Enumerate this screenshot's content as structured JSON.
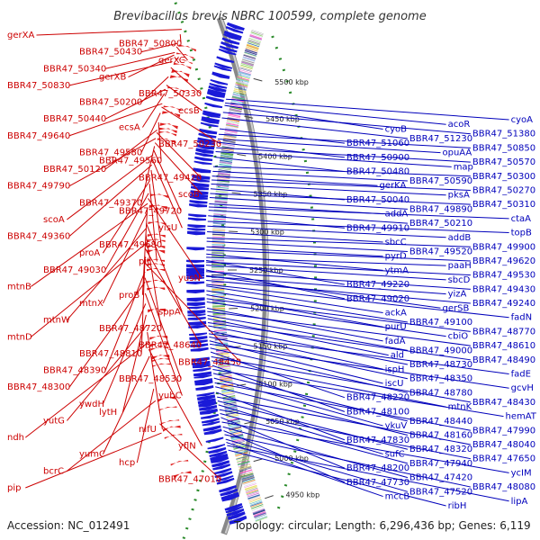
{
  "title": "Brevibacillus brevis NBRC 100599, complete genome",
  "accession": "Accession: NC_012491",
  "summary": "Topology: circular; Length: 6,296,436 bp; Genes: 6,119",
  "colors": {
    "backbone": "#888888",
    "reverse_strand": "#e02020",
    "forward_strand": "#1a1ad8",
    "left_labels": "#cc0000",
    "right_labels": "#0000bb",
    "rna_marks": "#2a8a2a"
  },
  "kbp_ticks": [
    {
      "label": "5500 kbp",
      "kbp": 5500
    },
    {
      "label": "5450 kbp",
      "kbp": 5450
    },
    {
      "label": "5400 kbp",
      "kbp": 5400
    },
    {
      "label": "5350 kbp",
      "kbp": 5350
    },
    {
      "label": "5300 kbp",
      "kbp": 5300
    },
    {
      "label": "5250 kbp",
      "kbp": 5250
    },
    {
      "label": "5200 kbp",
      "kbp": 5200
    },
    {
      "label": "5150 kbp",
      "kbp": 5150
    },
    {
      "label": "5100 kbp",
      "kbp": 5100
    },
    {
      "label": "5050 kbp",
      "kbp": 5050
    },
    {
      "label": "5000 kbp",
      "kbp": 5000
    },
    {
      "label": "4950 kbp",
      "kbp": 4950
    }
  ],
  "left_labels": [
    {
      "text": "gerXA",
      "kbp": 5533
    },
    {
      "text": "BBR47_50800",
      "kbp": 5527
    },
    {
      "text": "BBR47_50430",
      "kbp": 5516
    },
    {
      "text": "gerXC",
      "kbp": 5512
    },
    {
      "text": "BBR47_50340",
      "kbp": 5505
    },
    {
      "text": "gerXB",
      "kbp": 5502
    },
    {
      "text": "BBR47_50830",
      "kbp": 5494
    },
    {
      "text": "BBR47_50330",
      "kbp": 5487
    },
    {
      "text": "BBR47_50200",
      "kbp": 5476
    },
    {
      "text": "ecsB",
      "kbp": 5466
    },
    {
      "text": "BBR47_50440",
      "kbp": 5461
    },
    {
      "text": "ecsA",
      "kbp": 5456
    },
    {
      "text": "BBR47_49640",
      "kbp": 5444
    },
    {
      "text": "BBR47_50230",
      "kbp": 5440
    },
    {
      "text": "BBR47_49580",
      "kbp": 5433
    },
    {
      "text": "BBR47_49560",
      "kbp": 5422
    },
    {
      "text": "BBR47_50120",
      "kbp": 5413
    },
    {
      "text": "BBR47_49420",
      "kbp": 5410
    },
    {
      "text": "BBR47_49790",
      "kbp": 5403
    },
    {
      "text": "scoB",
      "kbp": 5398
    },
    {
      "text": "BBR47_49370",
      "kbp": 5394
    },
    {
      "text": "BBR47_49720",
      "kbp": 5389
    },
    {
      "text": "scoA",
      "kbp": 5384
    },
    {
      "text": "yisU",
      "kbp": 5378
    },
    {
      "text": "BBR47_49360",
      "kbp": 5372
    },
    {
      "text": "BBR47_49680",
      "kbp": 5366
    },
    {
      "text": "proA",
      "kbp": 5354
    },
    {
      "text": "pit",
      "kbp": 5350
    },
    {
      "text": "BBR47_49030",
      "kbp": 5339
    },
    {
      "text": "yusN",
      "kbp": 5333
    },
    {
      "text": "mtnB",
      "kbp": 5327
    },
    {
      "text": "proB",
      "kbp": 5322
    },
    {
      "text": "mtnX",
      "kbp": 5316
    },
    {
      "text": "sppA",
      "kbp": 5304
    },
    {
      "text": "mtnW",
      "kbp": 5298
    },
    {
      "text": "BBR47_48720",
      "kbp": 5292
    },
    {
      "text": "mtnD",
      "kbp": 5280
    },
    {
      "text": "BBR47_48640",
      "kbp": 5275
    },
    {
      "text": "BBR47_48810",
      "kbp": 5266
    },
    {
      "text": "BBR47_48450",
      "kbp": 5258
    },
    {
      "text": "BBR47_48390",
      "kbp": 5248
    },
    {
      "text": "BBR47_48530",
      "kbp": 5241
    },
    {
      "text": "BBR47_48300",
      "kbp": 5236
    },
    {
      "text": "yubC",
      "kbp": 5223
    },
    {
      "text": "ywdH",
      "kbp": 5211
    },
    {
      "text": "lytH",
      "kbp": 5198
    },
    {
      "text": "yutG",
      "kbp": 5186
    },
    {
      "text": "nifU",
      "kbp": 5178
    },
    {
      "text": "ndh",
      "kbp": 5166
    },
    {
      "text": "yflN",
      "kbp": 5158
    },
    {
      "text": "yumC",
      "kbp": 5150
    },
    {
      "text": "hcp",
      "kbp": 5112
    },
    {
      "text": "bcrC",
      "kbp": 5098
    },
    {
      "text": "BBR47_47010",
      "kbp": 5071
    },
    {
      "text": "pip",
      "kbp": 5060
    }
  ],
  "right_labels": [
    {
      "text": "cyoA",
      "kbp": 5466
    },
    {
      "text": "acoR",
      "kbp": 5461
    },
    {
      "text": "cyoB",
      "kbp": 5458
    },
    {
      "text": "BBR47_51380",
      "kbp": 5449
    },
    {
      "text": "BBR47_51230",
      "kbp": 5442
    },
    {
      "text": "BBR47_51060",
      "kbp": 5428
    },
    {
      "text": "BBR47_50850",
      "kbp": 5421
    },
    {
      "text": "opuAA",
      "kbp": 5415
    },
    {
      "text": "BBR47_50900",
      "kbp": 5411
    },
    {
      "text": "BBR47_50570",
      "kbp": 5404
    },
    {
      "text": "map",
      "kbp": 5399
    },
    {
      "text": "BBR47_50480",
      "kbp": 5392
    },
    {
      "text": "BBR47_50300",
      "kbp": 5380
    },
    {
      "text": "BBR47_50590",
      "kbp": 5374
    },
    {
      "text": "gerKA",
      "kbp": 5368
    },
    {
      "text": "BBR47_50270",
      "kbp": 5363
    },
    {
      "text": "pksA",
      "kbp": 5358
    },
    {
      "text": "BBR47_50040",
      "kbp": 5352
    },
    {
      "text": "BBR47_50310",
      "kbp": 5346
    },
    {
      "text": "BBR47_49890",
      "kbp": 5341
    },
    {
      "text": "addA",
      "kbp": 5333
    },
    {
      "text": "ctaA",
      "kbp": 5329
    },
    {
      "text": "BBR47_50210",
      "kbp": 5325
    },
    {
      "text": "BBR47_49910",
      "kbp": 5318
    },
    {
      "text": "topB",
      "kbp": 5311
    },
    {
      "text": "addB",
      "kbp": 5305
    },
    {
      "text": "sbcC",
      "kbp": 5298
    },
    {
      "text": "BBR47_49900",
      "kbp": 5290
    },
    {
      "text": "BBR47_49520",
      "kbp": 5286
    },
    {
      "text": "pyrD",
      "kbp": 5279
    },
    {
      "text": "BBR47_49620",
      "kbp": 5275
    },
    {
      "text": "paaH",
      "kbp": 5266
    },
    {
      "text": "ytmA",
      "kbp": 5270
    },
    {
      "text": "BBR47_49530",
      "kbp": 5260
    },
    {
      "text": "sbcD",
      "kbp": 5256
    },
    {
      "text": "BBR47_49220",
      "kbp": 5262
    },
    {
      "text": "BBR47_49430",
      "kbp": 5248
    },
    {
      "text": "yizA",
      "kbp": 5242
    },
    {
      "text": "BBR47_49020",
      "kbp": 5250
    },
    {
      "text": "BBR47_49240",
      "kbp": 5237
    },
    {
      "text": "gerSB",
      "kbp": 5243
    },
    {
      "text": "ackA",
      "kbp": 5230
    },
    {
      "text": "fadN",
      "kbp": 5232
    },
    {
      "text": "BBR47_49100",
      "kbp": 5224
    },
    {
      "text": "purU",
      "kbp": 5219
    },
    {
      "text": "BBR47_48770",
      "kbp": 5214
    },
    {
      "text": "cbiO",
      "kbp": 5210
    },
    {
      "text": "fadA",
      "kbp": 5202
    },
    {
      "text": "BBR47_48610",
      "kbp": 5198
    },
    {
      "text": "BBR47_49000",
      "kbp": 5193
    },
    {
      "text": "ald",
      "kbp": 5189
    },
    {
      "text": "BBR47_48490",
      "kbp": 5184
    },
    {
      "text": "BBR47_48730",
      "kbp": 5180
    },
    {
      "text": "ispH",
      "kbp": 5174
    },
    {
      "text": "fadE",
      "kbp": 5170
    },
    {
      "text": "BBR47_48350",
      "kbp": 5166
    },
    {
      "text": "iscU",
      "kbp": 5161
    },
    {
      "text": "gcvH",
      "kbp": 5157
    },
    {
      "text": "BBR47_48780",
      "kbp": 5152
    },
    {
      "text": "BBR47_48220",
      "kbp": 5147
    },
    {
      "text": "BBR47_48430",
      "kbp": 5141
    },
    {
      "text": "mtnK",
      "kbp": 5136
    },
    {
      "text": "BBR47_48100",
      "kbp": 5130
    },
    {
      "text": "hemAT",
      "kbp": 5125
    },
    {
      "text": "BBR47_48440",
      "kbp": 5120
    },
    {
      "text": "ykuV",
      "kbp": 5114
    },
    {
      "text": "BBR47_47990",
      "kbp": 5108
    },
    {
      "text": "BBR47_48160",
      "kbp": 5103
    },
    {
      "text": "BBR47_47830",
      "kbp": 5096
    },
    {
      "text": "BBR47_48040",
      "kbp": 5090
    },
    {
      "text": "BBR47_48320",
      "kbp": 5085
    },
    {
      "text": "sufC",
      "kbp": 5080
    },
    {
      "text": "BBR47_47650",
      "kbp": 5074
    },
    {
      "text": "BBR47_47940",
      "kbp": 5069
    },
    {
      "text": "BBR47_48200",
      "kbp": 5064
    },
    {
      "text": "ycIM",
      "kbp": 5058
    },
    {
      "text": "BBR47_47420",
      "kbp": 5052
    },
    {
      "text": "BBR47_47730",
      "kbp": 5047
    },
    {
      "text": "BBR47_48080",
      "kbp": 5042
    },
    {
      "text": "BBR47_47520",
      "kbp": 5036
    },
    {
      "text": "mccB",
      "kbp": 5032
    },
    {
      "text": "lipA",
      "kbp": 5028
    },
    {
      "text": "ribH",
      "kbp": 5022
    }
  ]
}
